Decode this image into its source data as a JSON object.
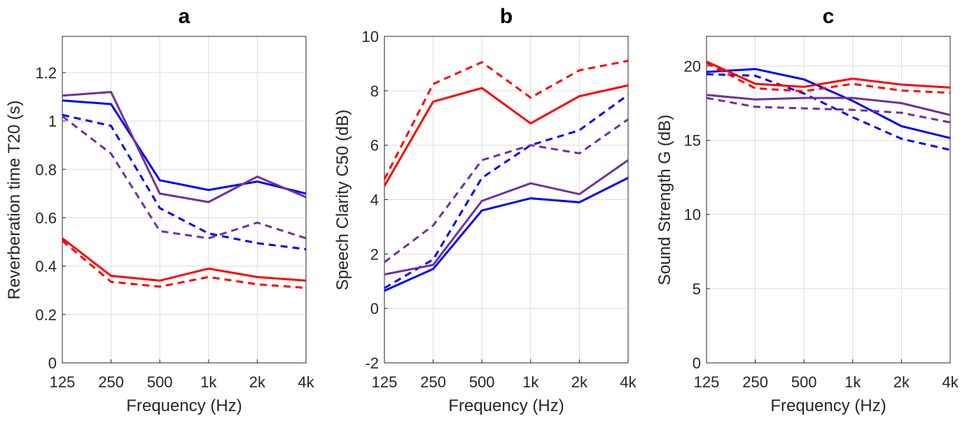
{
  "chart_data": [
    {
      "type": "line",
      "title": "a",
      "xlabel": "Frequency (Hz)",
      "ylabel": "Reverberation time T20 (s)",
      "categories": [
        "125",
        "250",
        "500",
        "1k",
        "2k",
        "4k"
      ],
      "ylim": [
        0,
        1.35
      ],
      "yticks": [
        0,
        0.2,
        0.4,
        0.6,
        0.8,
        1,
        1.2
      ],
      "ytick_labels": [
        "0",
        "0.2",
        "0.4",
        "0.6",
        "0.8",
        "1",
        "1.2"
      ],
      "grid": true,
      "series": [
        {
          "color": "#0000ff",
          "style": "solid",
          "values": [
            1.085,
            1.07,
            0.755,
            0.715,
            0.75,
            0.7
          ]
        },
        {
          "color": "#0000ff",
          "style": "dashed",
          "values": [
            1.025,
            0.98,
            0.64,
            0.535,
            0.495,
            0.47
          ]
        },
        {
          "color": "#7030a0",
          "style": "solid",
          "values": [
            1.105,
            1.12,
            0.7,
            0.665,
            0.77,
            0.685
          ]
        },
        {
          "color": "#7030a0",
          "style": "dashed",
          "values": [
            1.02,
            0.865,
            0.545,
            0.515,
            0.58,
            0.515
          ]
        },
        {
          "color": "#ff0000",
          "style": "solid",
          "values": [
            0.515,
            0.36,
            0.34,
            0.39,
            0.355,
            0.34
          ]
        },
        {
          "color": "#ff0000",
          "style": "dashed",
          "values": [
            0.505,
            0.335,
            0.315,
            0.355,
            0.325,
            0.31
          ]
        }
      ]
    },
    {
      "type": "line",
      "title": "b",
      "xlabel": "Frequency (Hz)",
      "ylabel": "Speech Clarity C50 (dB)",
      "categories": [
        "125",
        "250",
        "500",
        "1k",
        "2k",
        "4k"
      ],
      "ylim": [
        -2,
        10
      ],
      "yticks": [
        -2,
        0,
        2,
        4,
        6,
        8,
        10
      ],
      "ytick_labels": [
        "-2",
        "0",
        "2",
        "4",
        "6",
        "8",
        "10"
      ],
      "grid": true,
      "series": [
        {
          "color": "#0000ff",
          "style": "solid",
          "values": [
            0.65,
            1.45,
            3.6,
            4.05,
            3.9,
            4.8
          ]
        },
        {
          "color": "#0000ff",
          "style": "dashed",
          "values": [
            0.75,
            1.8,
            4.8,
            6.0,
            6.55,
            7.85
          ]
        },
        {
          "color": "#7030a0",
          "style": "solid",
          "values": [
            1.25,
            1.6,
            3.95,
            4.6,
            4.2,
            5.45
          ]
        },
        {
          "color": "#7030a0",
          "style": "dashed",
          "values": [
            1.7,
            3.05,
            5.45,
            6.0,
            5.7,
            6.95
          ]
        },
        {
          "color": "#ff0000",
          "style": "solid",
          "values": [
            4.5,
            7.6,
            8.1,
            6.8,
            7.8,
            8.2
          ]
        },
        {
          "color": "#ff0000",
          "style": "dashed",
          "values": [
            4.75,
            8.25,
            9.05,
            7.75,
            8.75,
            9.1
          ]
        }
      ]
    },
    {
      "type": "line",
      "title": "c",
      "xlabel": "Frequency (Hz)",
      "ylabel": "Sound Strength G (dB)",
      "categories": [
        "125",
        "250",
        "500",
        "1k",
        "2k",
        "4k"
      ],
      "ylim": [
        0,
        22
      ],
      "yticks": [
        0,
        5,
        10,
        15,
        20
      ],
      "ytick_labels": [
        "0",
        "5",
        "10",
        "15",
        "20"
      ],
      "grid": true,
      "series": [
        {
          "color": "#0000ff",
          "style": "solid",
          "values": [
            19.6,
            19.8,
            19.1,
            17.65,
            15.95,
            15.15
          ]
        },
        {
          "color": "#0000ff",
          "style": "dashed",
          "values": [
            19.45,
            19.35,
            18.15,
            16.55,
            15.1,
            14.35
          ]
        },
        {
          "color": "#7030a0",
          "style": "solid",
          "values": [
            18.05,
            17.75,
            17.85,
            17.85,
            17.5,
            16.7
          ]
        },
        {
          "color": "#7030a0",
          "style": "dashed",
          "values": [
            17.85,
            17.25,
            17.15,
            17.05,
            16.85,
            16.2
          ]
        },
        {
          "color": "#ff0000",
          "style": "solid",
          "values": [
            20.3,
            18.8,
            18.6,
            19.15,
            18.75,
            18.55
          ]
        },
        {
          "color": "#ff0000",
          "style": "dashed",
          "values": [
            20.2,
            18.5,
            18.3,
            18.8,
            18.35,
            18.2
          ]
        }
      ]
    }
  ]
}
